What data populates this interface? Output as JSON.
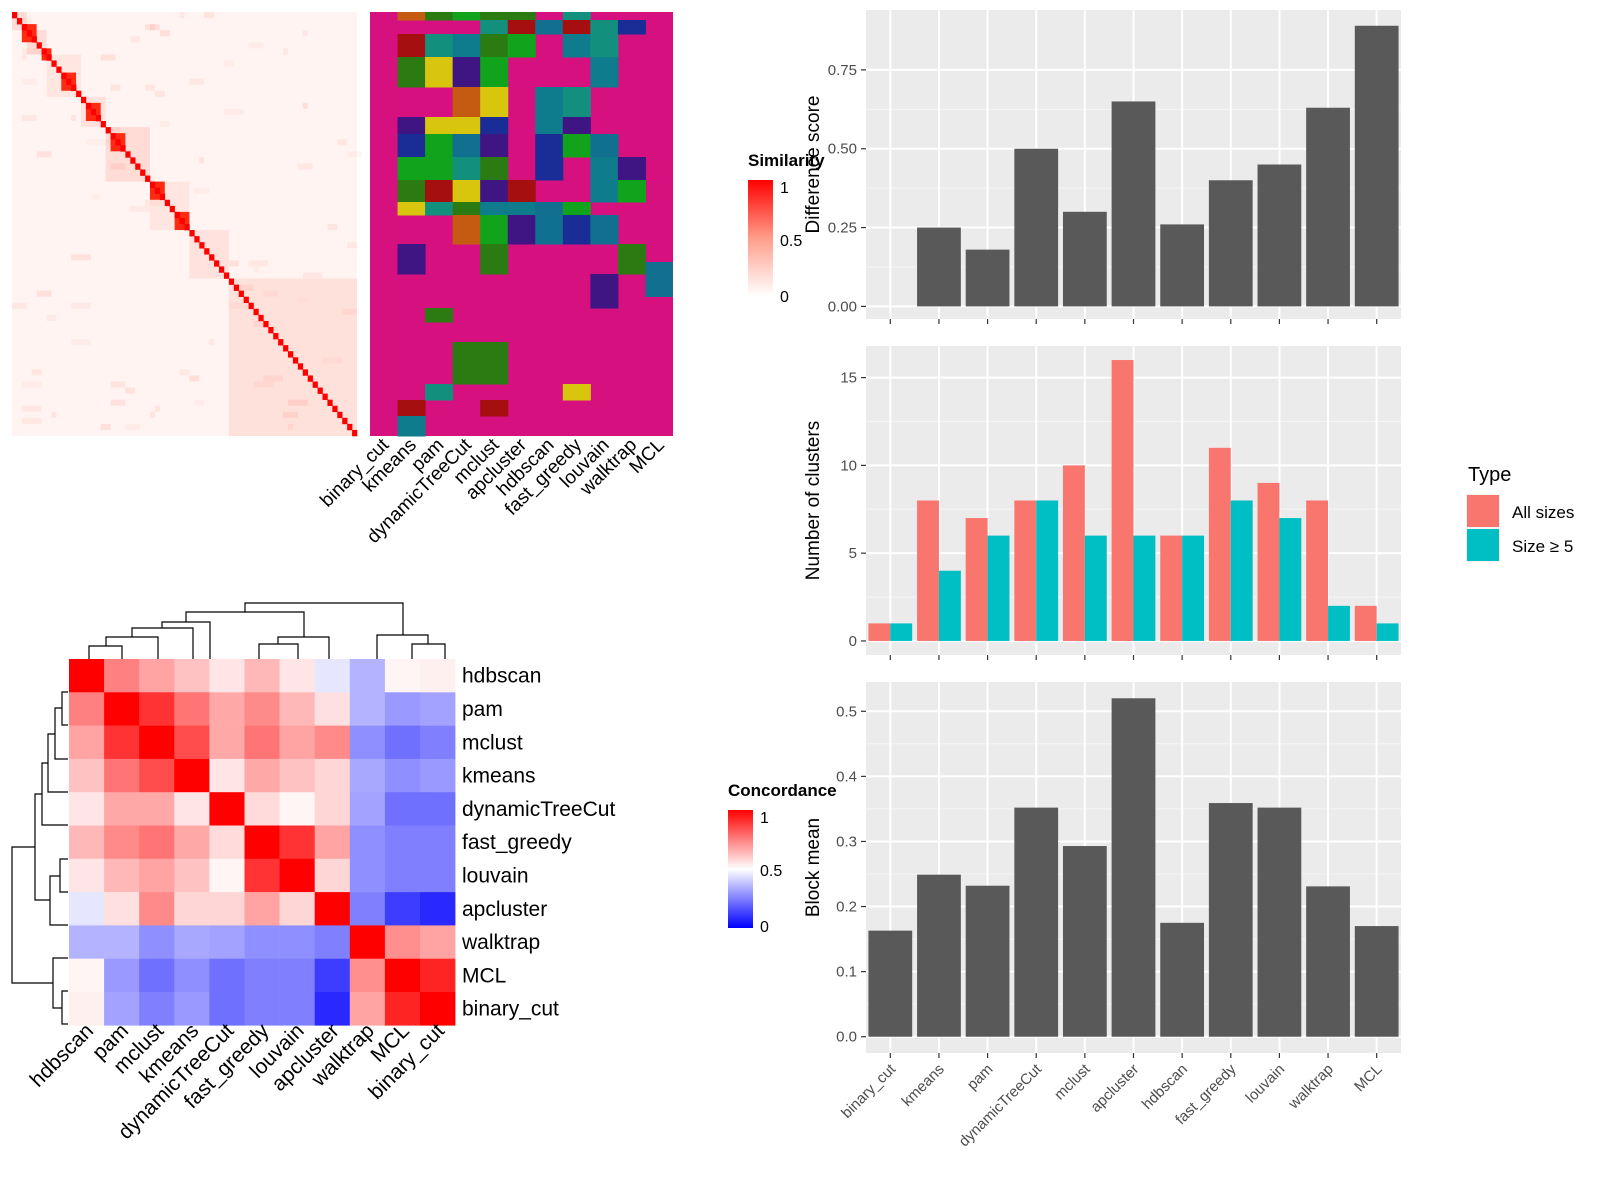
{
  "similarity_heatmap": {
    "legend_title": "Similarity",
    "legend_ticks": [
      "1",
      "0.5",
      "0"
    ]
  },
  "cluster_matrix": {
    "methods": [
      "binary_cut",
      "kmeans",
      "pam",
      "dynamicTreeCut",
      "mclust",
      "apcluster",
      "hdbscan",
      "fast_greedy",
      "louvain",
      "walktrap",
      "MCL"
    ]
  },
  "concordance_heatmap": {
    "legend_title": "Concordance",
    "legend_ticks": [
      "1",
      "0.5",
      "0"
    ],
    "row_order": [
      "hdbscan",
      "pam",
      "mclust",
      "kmeans",
      "dynamicTreeCut",
      "fast_greedy",
      "louvain",
      "apcluster",
      "walktrap",
      "MCL",
      "binary_cut"
    ],
    "col_order": [
      "hdbscan",
      "pam",
      "mclust",
      "kmeans",
      "dynamicTreeCut",
      "fast_greedy",
      "louvain",
      "apcluster",
      "walktrap",
      "MCL",
      "binary_cut"
    ],
    "values": [
      [
        1.0,
        0.75,
        0.68,
        0.62,
        0.55,
        0.64,
        0.55,
        0.45,
        0.35,
        0.52,
        0.53
      ],
      [
        0.75,
        1.0,
        0.9,
        0.77,
        0.67,
        0.73,
        0.64,
        0.56,
        0.35,
        0.3,
        0.32
      ],
      [
        0.68,
        0.9,
        1.0,
        0.85,
        0.67,
        0.77,
        0.68,
        0.73,
        0.28,
        0.22,
        0.25
      ],
      [
        0.62,
        0.77,
        0.85,
        1.0,
        0.55,
        0.67,
        0.62,
        0.58,
        0.33,
        0.28,
        0.3
      ],
      [
        0.55,
        0.67,
        0.67,
        0.55,
        1.0,
        0.57,
        0.52,
        0.58,
        0.32,
        0.22,
        0.22
      ],
      [
        0.64,
        0.73,
        0.77,
        0.67,
        0.57,
        1.0,
        0.9,
        0.68,
        0.28,
        0.25,
        0.25
      ],
      [
        0.55,
        0.64,
        0.68,
        0.62,
        0.52,
        0.9,
        1.0,
        0.58,
        0.28,
        0.25,
        0.25
      ],
      [
        0.45,
        0.56,
        0.73,
        0.58,
        0.58,
        0.68,
        0.58,
        1.0,
        0.25,
        0.12,
        0.08
      ],
      [
        0.35,
        0.35,
        0.28,
        0.33,
        0.32,
        0.28,
        0.28,
        0.25,
        1.0,
        0.72,
        0.68
      ],
      [
        0.52,
        0.3,
        0.22,
        0.28,
        0.22,
        0.25,
        0.25,
        0.12,
        0.72,
        1.0,
        0.93
      ],
      [
        0.53,
        0.32,
        0.25,
        0.3,
        0.22,
        0.25,
        0.25,
        0.08,
        0.68,
        0.93,
        1.0
      ]
    ]
  },
  "chart_data": [
    {
      "type": "bar",
      "categories": [
        "binary_cut",
        "kmeans",
        "pam",
        "dynamicTreeCut",
        "mclust",
        "apcluster",
        "hdbscan",
        "fast_greedy",
        "louvain",
        "walktrap",
        "MCL"
      ],
      "values": [
        0,
        0.25,
        0.18,
        0.5,
        0.3,
        0.65,
        0.26,
        0.4,
        0.45,
        0.63,
        0.89
      ],
      "xlabel": "",
      "ylabel": "Difference score",
      "ylim": [
        -0.04,
        0.94
      ],
      "yticks": [
        0.0,
        0.25,
        0.5,
        0.75
      ],
      "ytick_labels": [
        "0.00",
        "0.25",
        "0.50",
        "0.75"
      ],
      "grid": true,
      "show_x_labels": false
    },
    {
      "type": "bar",
      "categories": [
        "binary_cut",
        "kmeans",
        "pam",
        "dynamicTreeCut",
        "mclust",
        "apcluster",
        "hdbscan",
        "fast_greedy",
        "louvain",
        "walktrap",
        "MCL"
      ],
      "series": [
        {
          "name": "All sizes",
          "values": [
            1,
            8,
            7,
            8,
            10,
            16,
            6,
            11,
            9,
            8,
            2
          ],
          "color": "#F8766D"
        },
        {
          "name": "Size ≥ 5",
          "values": [
            1,
            4,
            6,
            8,
            6,
            6,
            6,
            8,
            7,
            2,
            1
          ],
          "color": "#00BFC4"
        }
      ],
      "xlabel": "",
      "ylabel": "Number of clusters",
      "ylim": [
        -0.8,
        16.8
      ],
      "yticks": [
        0,
        5,
        10,
        15
      ],
      "ytick_labels": [
        "0",
        "5",
        "10",
        "15"
      ],
      "legend_title": "Type",
      "legend_position": "right",
      "grid": true,
      "show_x_labels": false
    },
    {
      "type": "bar",
      "categories": [
        "binary_cut",
        "kmeans",
        "pam",
        "dynamicTreeCut",
        "mclust",
        "apcluster",
        "hdbscan",
        "fast_greedy",
        "louvain",
        "walktrap",
        "MCL"
      ],
      "values": [
        0.163,
        0.249,
        0.232,
        0.352,
        0.293,
        0.52,
        0.175,
        0.359,
        0.352,
        0.231,
        0.17
      ],
      "xlabel": "",
      "ylabel": "Block mean",
      "ylim": [
        -0.025,
        0.545
      ],
      "yticks": [
        0.0,
        0.1,
        0.2,
        0.3,
        0.4,
        0.5
      ],
      "ytick_labels": [
        "0.0",
        "0.1",
        "0.2",
        "0.3",
        "0.4",
        "0.5"
      ],
      "grid": true,
      "show_x_labels": true
    }
  ],
  "colors": {
    "panel_bg": "#EBEBEB",
    "bar_gray": "#595959",
    "all_sizes": "#F8766D",
    "size_ge_5": "#00BFC4",
    "cluster_bg": "#D6117F"
  }
}
